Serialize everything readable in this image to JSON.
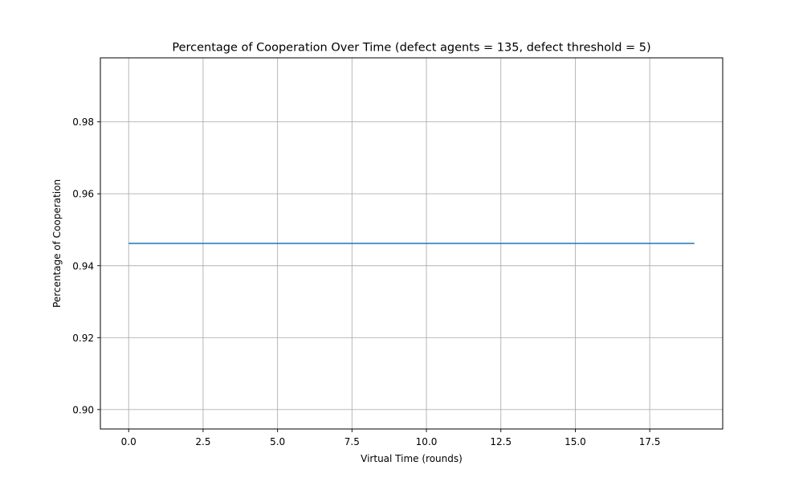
{
  "chart_data": {
    "type": "line",
    "title": "Percentage of Cooperation Over Time (defect agents = 135, defect threshold = 5)",
    "xlabel": "Virtual Time (rounds)",
    "ylabel": "Percentage of Cooperation",
    "xlim": [
      -0.95,
      19.95
    ],
    "ylim": [
      0.8946,
      0.9978
    ],
    "x_ticks": [
      0.0,
      2.5,
      5.0,
      7.5,
      10.0,
      12.5,
      15.0,
      17.5
    ],
    "x_tick_labels": [
      "0.0",
      "2.5",
      "5.0",
      "7.5",
      "10.0",
      "12.5",
      "15.0",
      "17.5"
    ],
    "y_ticks": [
      0.9,
      0.92,
      0.94,
      0.96,
      0.98
    ],
    "y_tick_labels": [
      "0.90",
      "0.92",
      "0.94",
      "0.96",
      "0.98"
    ],
    "grid": true,
    "series": [
      {
        "color": "#1f77b4",
        "x": [
          0,
          1,
          2,
          3,
          4,
          5,
          6,
          7,
          8,
          9,
          10,
          11,
          12,
          13,
          14,
          15,
          16,
          17,
          18,
          19
        ],
        "y": [
          0.9462,
          0.9462,
          0.9462,
          0.9462,
          0.9462,
          0.9462,
          0.9462,
          0.9462,
          0.9462,
          0.9462,
          0.9462,
          0.9462,
          0.9462,
          0.9462,
          0.9462,
          0.9462,
          0.9462,
          0.9462,
          0.9462,
          0.9462
        ]
      }
    ]
  }
}
